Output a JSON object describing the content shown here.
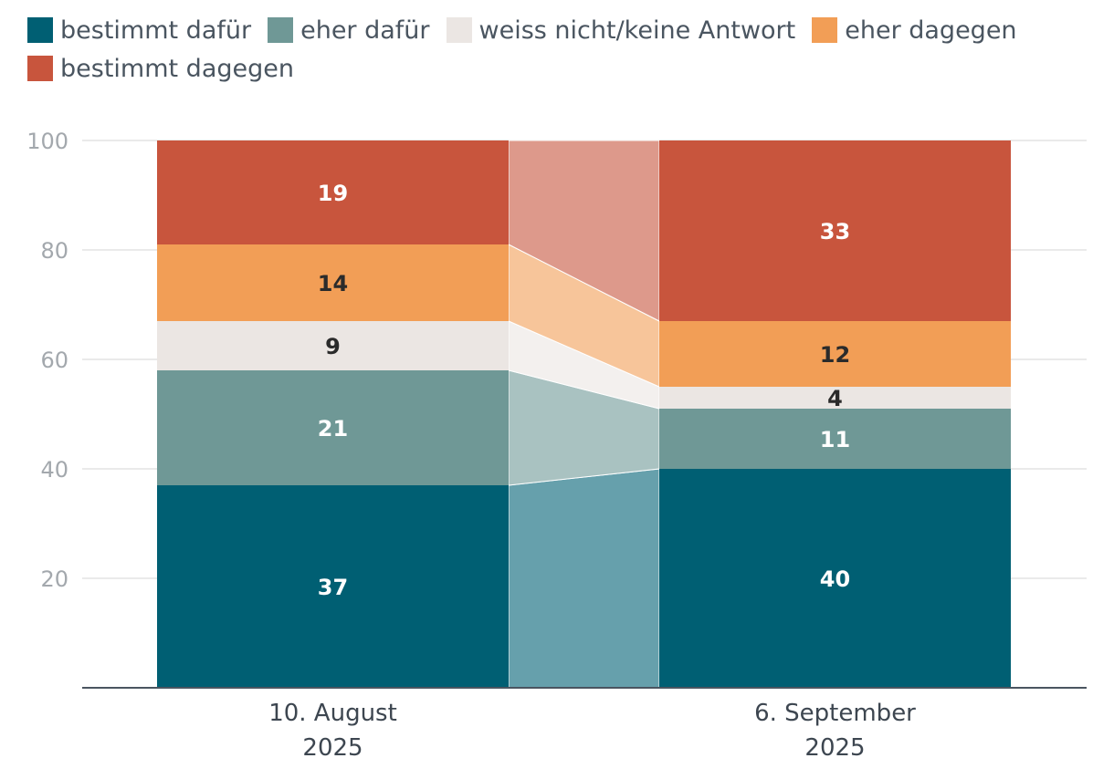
{
  "chart_data": {
    "type": "bar",
    "stacked": true,
    "categories": [
      [
        "10. August",
        "2025"
      ],
      [
        "6. September",
        "2025"
      ]
    ],
    "series": [
      {
        "name": "bestimmt dafür",
        "color": "#005f73",
        "connector_color": "#66a0ac",
        "label_color": "#ffffff",
        "values": [
          37,
          40
        ]
      },
      {
        "name": "eher dafür",
        "color": "#6f9896",
        "connector_color": "#a9c2c1",
        "label_color": "#ffffff",
        "values": [
          21,
          11
        ]
      },
      {
        "name": "weiss nicht/keine Antwort",
        "color": "#ebe6e3",
        "connector_color": "#f3f0ee",
        "label_color": "#2b2b2b",
        "values": [
          9,
          4
        ]
      },
      {
        "name": "eher dagegen",
        "color": "#f29e56",
        "connector_color": "#f7c59a",
        "label_color": "#2b2b2b",
        "values": [
          14,
          12
        ]
      },
      {
        "name": "bestimmt dagegen",
        "color": "#c8553d",
        "connector_color": "#dd998b",
        "label_color": "#ffffff",
        "values": [
          19,
          33
        ]
      }
    ],
    "ylim": [
      0,
      100
    ],
    "yticks": [
      20,
      40,
      60,
      80,
      100
    ],
    "grid": true,
    "legend_position": "top-left"
  }
}
